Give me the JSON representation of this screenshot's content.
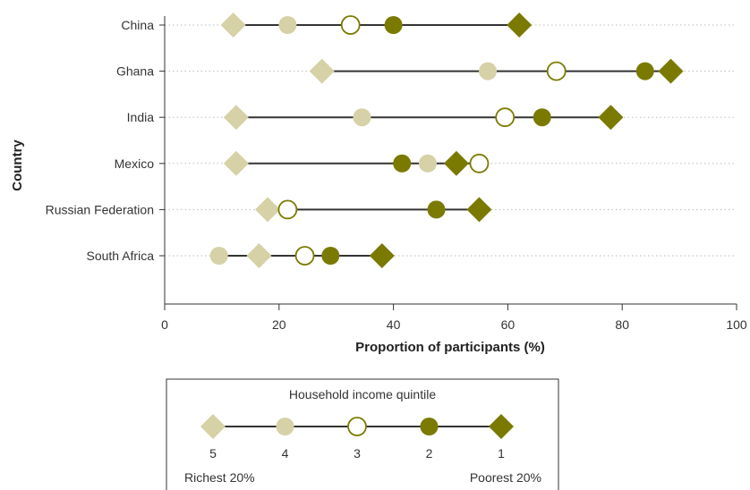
{
  "chart_data": {
    "type": "scatter",
    "title": "",
    "xlabel": "Proportion of participants (%)",
    "ylabel": "Country",
    "xlim": [
      0,
      100
    ],
    "xticks": [
      0,
      20,
      40,
      60,
      80,
      100
    ],
    "grid": "dotted horizontal lines",
    "categories": [
      "China",
      "Ghana",
      "India",
      "Mexico",
      "Russian Federation",
      "South Africa"
    ],
    "series": [
      {
        "quintile": "5",
        "color": "#d6d1a6",
        "marker": "diamond",
        "values": [
          12,
          27.5,
          12.5,
          12.5,
          18,
          16.5
        ]
      },
      {
        "quintile": "4",
        "color": "#d6d1a6",
        "marker": "circle",
        "values": [
          21.5,
          56.5,
          34.5,
          46,
          null,
          9.5
        ]
      },
      {
        "quintile": "3",
        "color": "#ffffff",
        "marker": "open-circle",
        "values": [
          32.5,
          68.5,
          59.5,
          55,
          21.5,
          24.5
        ]
      },
      {
        "quintile": "2",
        "color": "#7a7a00",
        "marker": "circle",
        "values": [
          40,
          84,
          66,
          41.5,
          47.5,
          29
        ]
      },
      {
        "quintile": "1",
        "color": "#7a7a00",
        "marker": "diamond",
        "values": [
          62,
          88.5,
          78,
          51,
          55,
          38
        ]
      }
    ],
    "legend": {
      "title": "Household income quintile",
      "placement": "bottom-center",
      "items": [
        {
          "label": "5",
          "marker": "diamond",
          "color": "#d6d1a6"
        },
        {
          "label": "4",
          "marker": "circle",
          "color": "#d6d1a6"
        },
        {
          "label": "3",
          "marker": "open-circle",
          "color": "#ffffff"
        },
        {
          "label": "2",
          "marker": "circle",
          "color": "#7a7a00"
        },
        {
          "label": "1",
          "marker": "diamond",
          "color": "#7a7a00"
        }
      ],
      "left_caption": "Richest 20%",
      "right_caption": "Poorest 20%"
    }
  }
}
